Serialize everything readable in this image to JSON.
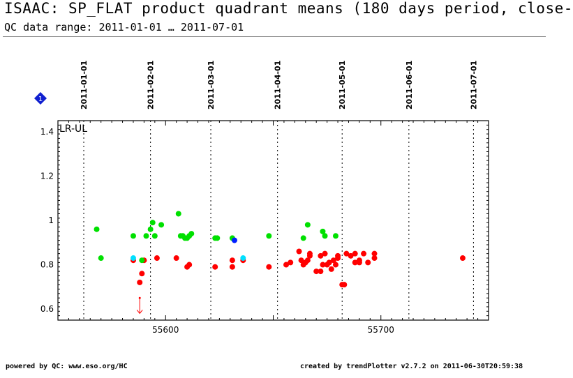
{
  "header": {
    "title": "ISAAC: SP_FLAT product quadrant means (180 days period, close-",
    "subtitle": "QC data range: 2011-01-01 … 2011-07-01"
  },
  "footer": {
    "left": "powered by QC: www.eso.org/HC",
    "right": "created by trendPlotter v2.7.2 on 2011-06-30T20:59:38"
  },
  "badge": {
    "label": "1",
    "color": "#1020d0",
    "icon": "diamond-icon"
  },
  "chart_data": {
    "type": "scatter",
    "panel_label": "LR-UL",
    "xlim": [
      55550,
      55750
    ],
    "ylim": [
      0.55,
      1.45
    ],
    "x_ticks": [
      55600,
      55700
    ],
    "y_ticks": [
      0.6,
      0.8,
      1.0,
      1.2,
      1.4
    ],
    "y_tick_labels": [
      "0.6",
      "0.8",
      "1",
      "1.2",
      "1.4"
    ],
    "date_markers": [
      {
        "label": "2011-01-01",
        "mjd": 55562
      },
      {
        "label": "2011-02-01",
        "mjd": 55593
      },
      {
        "label": "2011-03-01",
        "mjd": 55621
      },
      {
        "label": "2011-04-01",
        "mjd": 55652
      },
      {
        "label": "2011-05-01",
        "mjd": 55682
      },
      {
        "label": "2011-06-01",
        "mjd": 55713
      },
      {
        "label": "2011-07-01",
        "mjd": 55743
      }
    ],
    "series": [
      {
        "color": "#ff0000",
        "points": [
          [
            55585,
            0.82
          ],
          [
            55588,
            0.72
          ],
          [
            55589,
            0.76
          ],
          [
            55590,
            0.82
          ],
          [
            55596,
            0.83
          ],
          [
            55605,
            0.83
          ],
          [
            55610,
            0.79
          ],
          [
            55611,
            0.8
          ],
          [
            55623,
            0.79
          ],
          [
            55631,
            0.82
          ],
          [
            55631,
            0.79
          ],
          [
            55636,
            0.82
          ],
          [
            55648,
            0.79
          ],
          [
            55656,
            0.8
          ],
          [
            55658,
            0.81
          ],
          [
            55662,
            0.86
          ],
          [
            55663,
            0.82
          ],
          [
            55664,
            0.8
          ],
          [
            55665,
            0.81
          ],
          [
            55666,
            0.82
          ],
          [
            55667,
            0.85
          ],
          [
            55670,
            0.77
          ],
          [
            55672,
            0.77
          ],
          [
            55673,
            0.8
          ],
          [
            55674,
            0.85
          ],
          [
            55675,
            0.8
          ],
          [
            55676,
            0.81
          ],
          [
            55677,
            0.78
          ],
          [
            55678,
            0.82
          ],
          [
            55679,
            0.8
          ],
          [
            55680,
            0.83
          ],
          [
            55682,
            0.71
          ],
          [
            55683,
            0.71
          ],
          [
            55684,
            0.85
          ],
          [
            55686,
            0.84
          ],
          [
            55688,
            0.85
          ],
          [
            55690,
            0.82
          ],
          [
            55690,
            0.81
          ],
          [
            55692,
            0.85
          ],
          [
            55694,
            0.81
          ],
          [
            55697,
            0.85
          ],
          [
            55697,
            0.83
          ],
          [
            55667,
            0.84
          ],
          [
            55672,
            0.84
          ],
          [
            55680,
            0.84
          ],
          [
            55688,
            0.81
          ],
          [
            55738,
            0.83
          ]
        ]
      },
      {
        "color": "#00e000",
        "points": [
          [
            55568,
            0.96
          ],
          [
            55570,
            0.83
          ],
          [
            55585,
            0.93
          ],
          [
            55589,
            0.82
          ],
          [
            55591,
            0.93
          ],
          [
            55593,
            0.96
          ],
          [
            55594,
            0.99
          ],
          [
            55595,
            0.93
          ],
          [
            55598,
            0.98
          ],
          [
            55606,
            1.03
          ],
          [
            55607,
            0.93
          ],
          [
            55608,
            0.93
          ],
          [
            55609,
            0.92
          ],
          [
            55610,
            0.92
          ],
          [
            55611,
            0.93
          ],
          [
            55612,
            0.94
          ],
          [
            55623,
            0.92
          ],
          [
            55624,
            0.92
          ],
          [
            55631,
            0.92
          ],
          [
            55648,
            0.93
          ],
          [
            55664,
            0.92
          ],
          [
            55666,
            0.98
          ],
          [
            55673,
            0.95
          ],
          [
            55674,
            0.93
          ],
          [
            55679,
            0.93
          ]
        ]
      },
      {
        "color": "#00e0ff",
        "points": [
          [
            55585,
            0.83
          ],
          [
            55636,
            0.83
          ]
        ]
      },
      {
        "color": "#0020ff",
        "points": [
          [
            55632,
            0.91
          ]
        ]
      }
    ],
    "arrow_annotation": {
      "x": 55588,
      "from_y": 0.65,
      "to_y": 0.58,
      "color": "#ff0000"
    }
  }
}
